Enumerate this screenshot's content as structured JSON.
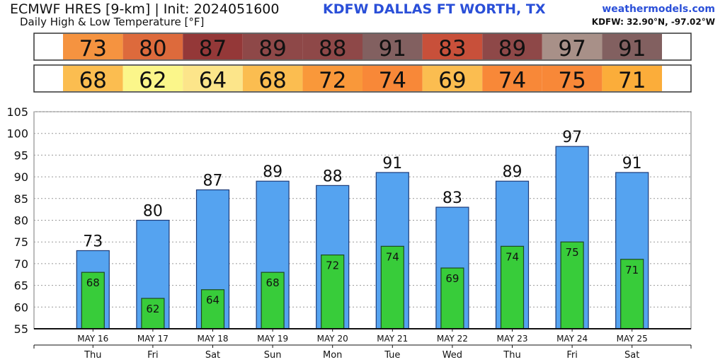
{
  "header": {
    "model": "ECMWF HRES [9-km] | Init: 2024051600",
    "station": "KDFW DALLAS FT WORTH, TX",
    "subtitle": "Daily High & Low Temperature [°F]",
    "site": "weathermodels.com",
    "coords": "KDFW: 32.90°N, -97.02°W"
  },
  "colors": {
    "high_bar": "#55a3f0",
    "low_bar": "#38cc3a",
    "high_boxes": [
      "#f59340",
      "#dd6a3c",
      "#943838",
      "#8e4848",
      "#8e4848",
      "#826060",
      "#c8503a",
      "#8e4848",
      "#a89088",
      "#826060"
    ],
    "low_boxes": [
      "#fbbd50",
      "#fbf68a",
      "#fce58a",
      "#fbbd50",
      "#f9983a",
      "#f88838",
      "#fbbd50",
      "#f88838",
      "#f88838",
      "#fbad3a"
    ]
  },
  "chart_data": {
    "type": "bar",
    "categories": [
      "MAY 16",
      "MAY 17",
      "MAY 18",
      "MAY 19",
      "MAY 20",
      "MAY 21",
      "MAY 22",
      "MAY 23",
      "MAY 24",
      "MAY 25"
    ],
    "weekdays": [
      "Thu",
      "Fri",
      "Sat",
      "Sun",
      "Mon",
      "Tue",
      "Wed",
      "Thu",
      "Fri",
      "Sat"
    ],
    "series": [
      {
        "values": [
          73,
          80,
          87,
          89,
          88,
          91,
          83,
          89,
          97,
          91
        ]
      },
      {
        "values": [
          68,
          62,
          64,
          68,
          72,
          74,
          69,
          74,
          75,
          71
        ]
      }
    ],
    "ylim": [
      55,
      105
    ],
    "yticks": [
      55,
      60,
      65,
      70,
      75,
      80,
      85,
      90,
      95,
      100,
      105
    ],
    "grid": true
  }
}
